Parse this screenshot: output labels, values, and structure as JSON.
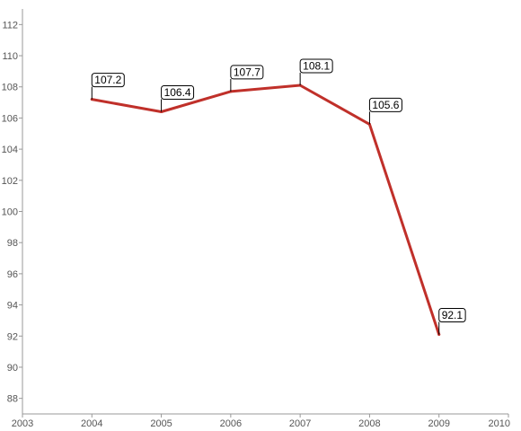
{
  "chart_data": {
    "type": "line",
    "title": "",
    "xlabel": "",
    "ylabel": "",
    "xlim": [
      2003,
      2010
    ],
    "ylim": [
      87,
      113
    ],
    "x_ticks": [
      2003,
      2004,
      2005,
      2006,
      2007,
      2008,
      2009,
      2010
    ],
    "y_ticks": [
      88,
      90,
      92,
      94,
      96,
      98,
      100,
      102,
      104,
      106,
      108,
      110,
      112
    ],
    "grid": false,
    "legend": "none",
    "series": [
      {
        "color": "#c0302a",
        "x": [
          2004,
          2005,
          2006,
          2007,
          2008,
          2009
        ],
        "values": [
          107.2,
          106.4,
          107.7,
          108.1,
          105.6,
          92.1
        ],
        "labels": [
          "107.2",
          "106.4",
          "107.7",
          "108.1",
          "105.6",
          "92.1"
        ]
      }
    ]
  }
}
